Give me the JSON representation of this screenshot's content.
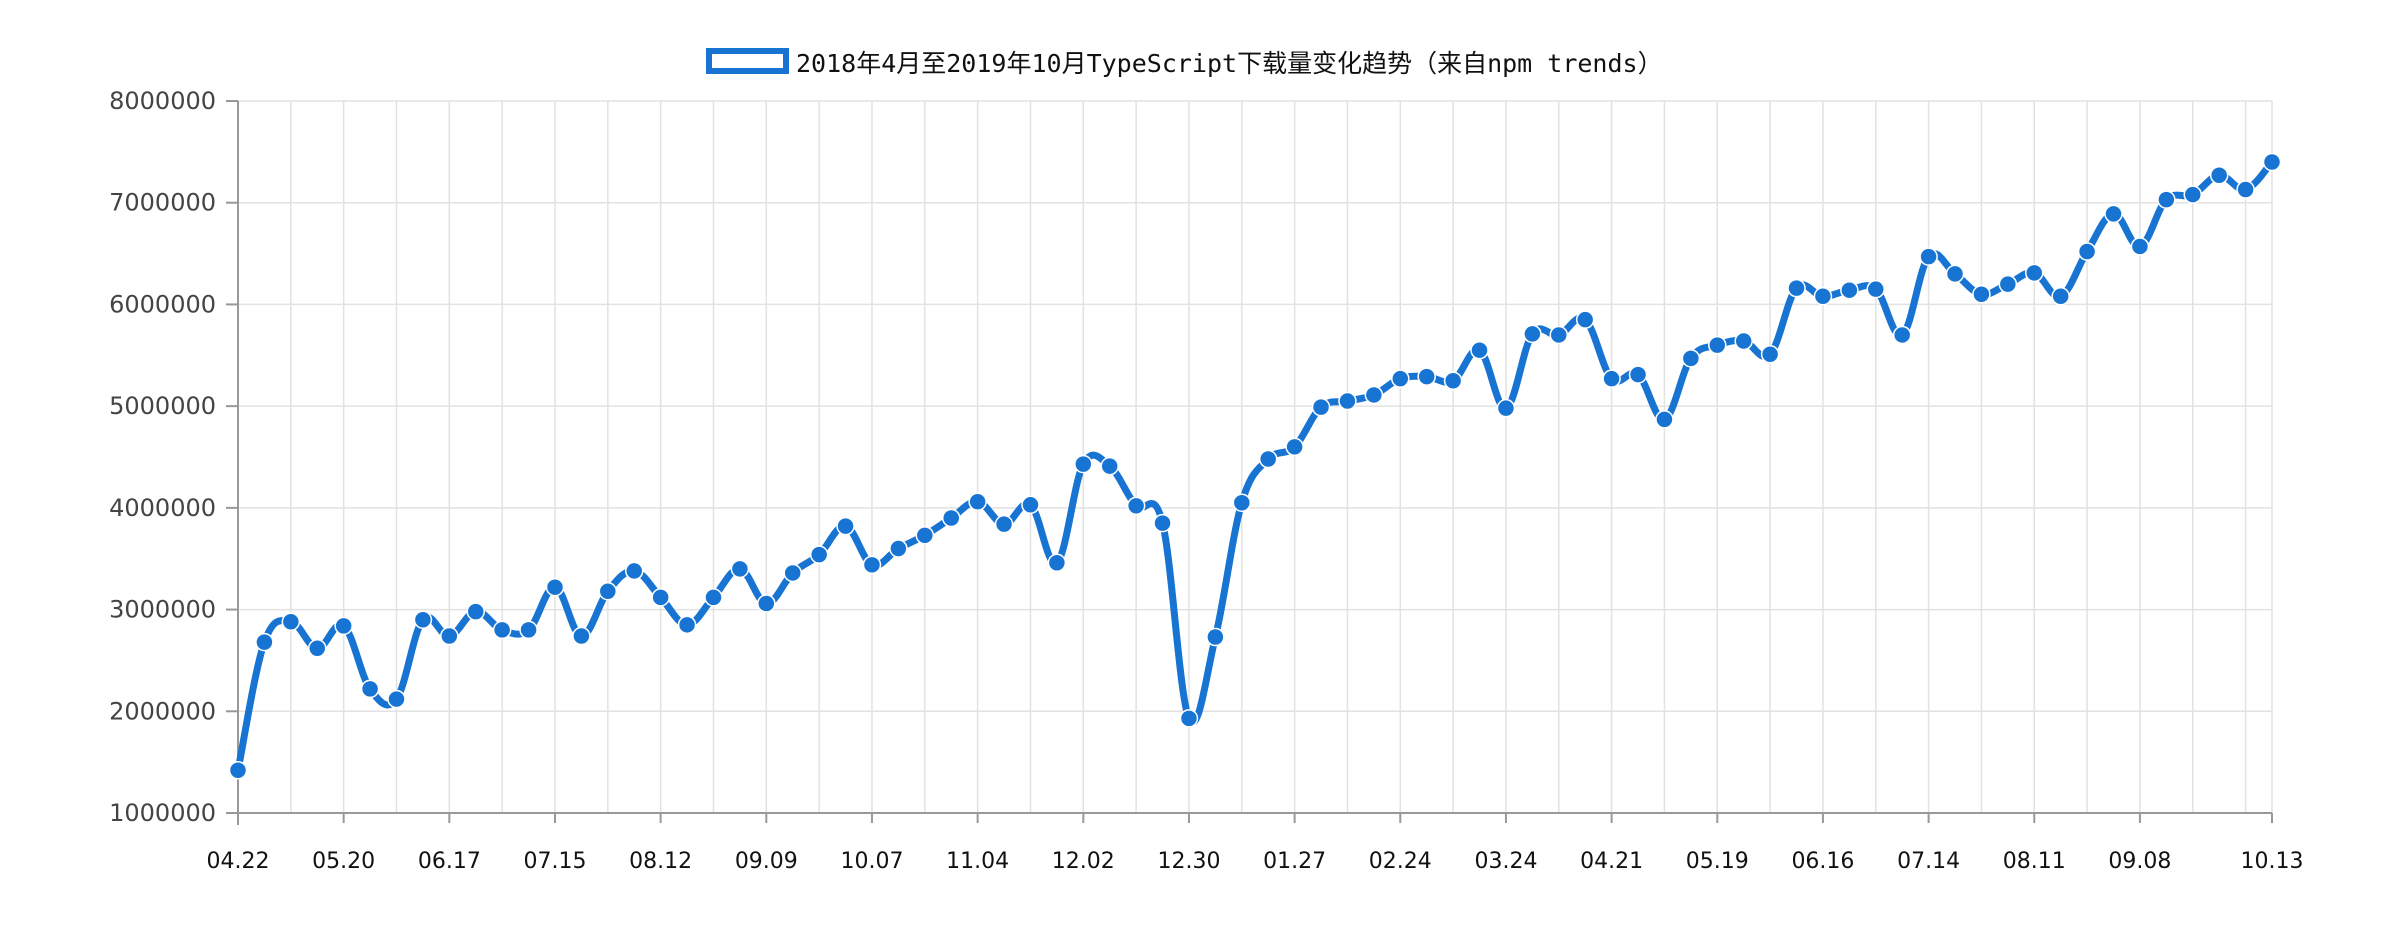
{
  "chart_data": {
    "type": "line",
    "title": "2018年4月至2019年10月TypeScript下载量变化趋势（来自npm trends）",
    "legend": {
      "placement": "top-center"
    },
    "xlabel": "",
    "ylabel": "",
    "ylim": [
      1000000,
      8000000
    ],
    "yticks": [
      1000000,
      2000000,
      3000000,
      4000000,
      5000000,
      6000000,
      7000000,
      8000000
    ],
    "ytick_labels": [
      "1000000",
      "2000000",
      "3000000",
      "4000000",
      "5000000",
      "6000000",
      "7000000",
      "8000000"
    ],
    "grid": true,
    "line_color": "#1874d2",
    "xtick_labels": [
      "04.22",
      "05.20",
      "06.17",
      "07.15",
      "08.12",
      "09.09",
      "10.07",
      "11.04",
      "12.02",
      "12.30",
      "01.27",
      "02.24",
      "03.24",
      "04.21",
      "05.19",
      "06.16",
      "07.14",
      "08.11",
      "09.08",
      "10.13"
    ],
    "xtick_index": [
      0,
      4,
      8,
      12,
      16,
      20,
      24,
      28,
      32,
      36,
      40,
      44,
      48,
      52,
      56,
      60,
      64,
      68,
      72,
      77
    ],
    "series": [
      {
        "name": "2018年4月至2019年10月TypeScript下载量变化趋势（来自npm trends）",
        "values": [
          1420000,
          2680000,
          2880000,
          2620000,
          2840000,
          2220000,
          2120000,
          2900000,
          2740000,
          2980000,
          2800000,
          2800000,
          3220000,
          2740000,
          3180000,
          3380000,
          3120000,
          2850000,
          3120000,
          3400000,
          3060000,
          3360000,
          3540000,
          3820000,
          3440000,
          3600000,
          3730000,
          3900000,
          4060000,
          3840000,
          4030000,
          3460000,
          4430000,
          4410000,
          4020000,
          3850000,
          1930000,
          2730000,
          4050000,
          4480000,
          4600000,
          4990000,
          5050000,
          5110000,
          5270000,
          5290000,
          5250000,
          5550000,
          4980000,
          5710000,
          5700000,
          5850000,
          5270000,
          5310000,
          4870000,
          5470000,
          5600000,
          5640000,
          5510000,
          6160000,
          6080000,
          6140000,
          6150000,
          5700000,
          6470000,
          6300000,
          6100000,
          6200000,
          6310000,
          6080000,
          6520000,
          6890000,
          6570000,
          7030000,
          7080000,
          7270000,
          7130000,
          7400000
        ]
      }
    ]
  }
}
